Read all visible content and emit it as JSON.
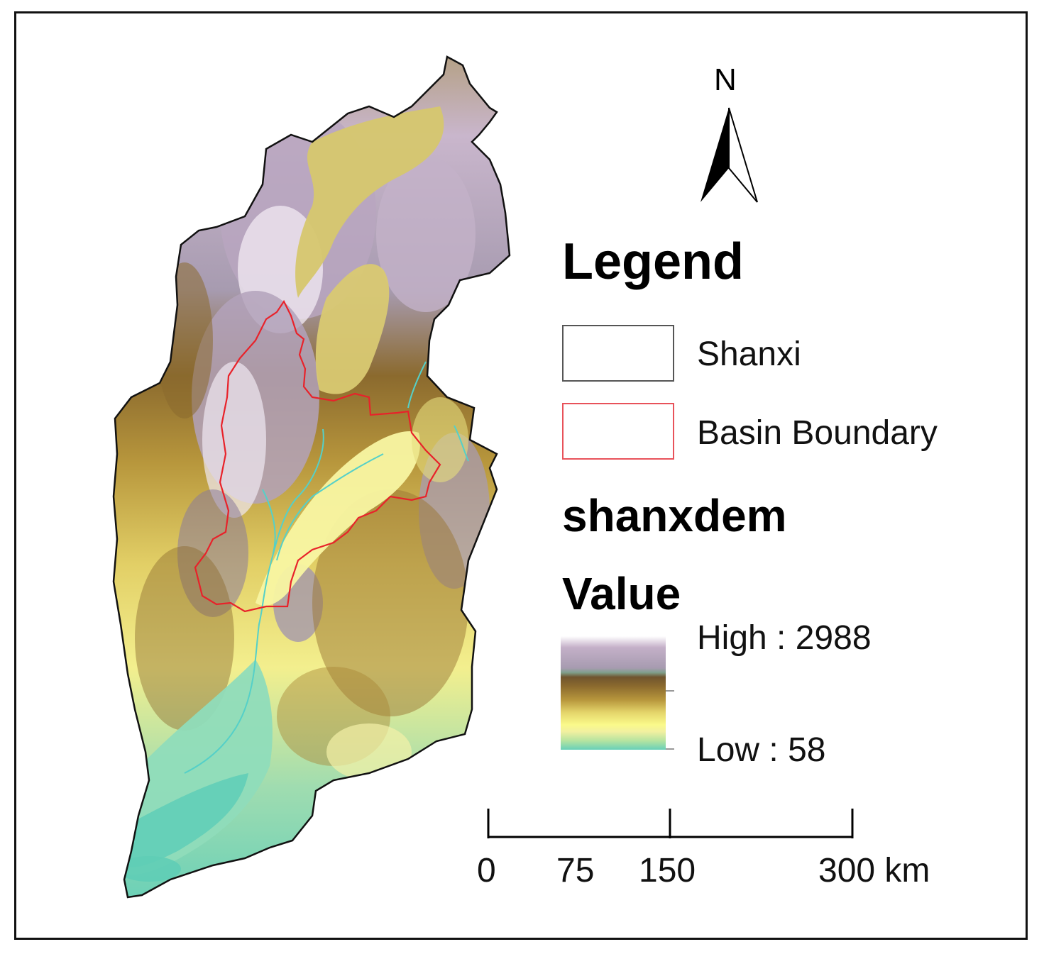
{
  "north_arrow": {
    "letter": "N",
    "icon": "north-arrow-icon"
  },
  "legend": {
    "title": "Legend",
    "items": [
      {
        "label": "Shanxi",
        "stroke": "#555555"
      },
      {
        "label": "Basin Boundary",
        "stroke": "#e8525a"
      }
    ]
  },
  "raster": {
    "name": "shanxdem",
    "field": "Value",
    "high_label": "High : 2988",
    "low_label": "Low : 58",
    "high_value": 2988,
    "low_value": 58,
    "colors": [
      "#ffffff",
      "#a79bb0",
      "#70552f",
      "#b7963c",
      "#fafa8a",
      "#68d0b8"
    ]
  },
  "scale_bar": {
    "ticks": [
      {
        "label": "0",
        "km": 0
      },
      {
        "label": "75",
        "km": 75
      },
      {
        "label": "150",
        "km": 150
      },
      {
        "label": "300 km",
        "km": 300
      }
    ]
  },
  "colors": {
    "boundary": "#111111",
    "basin": "#e8222a",
    "river": "#55d0c8"
  }
}
